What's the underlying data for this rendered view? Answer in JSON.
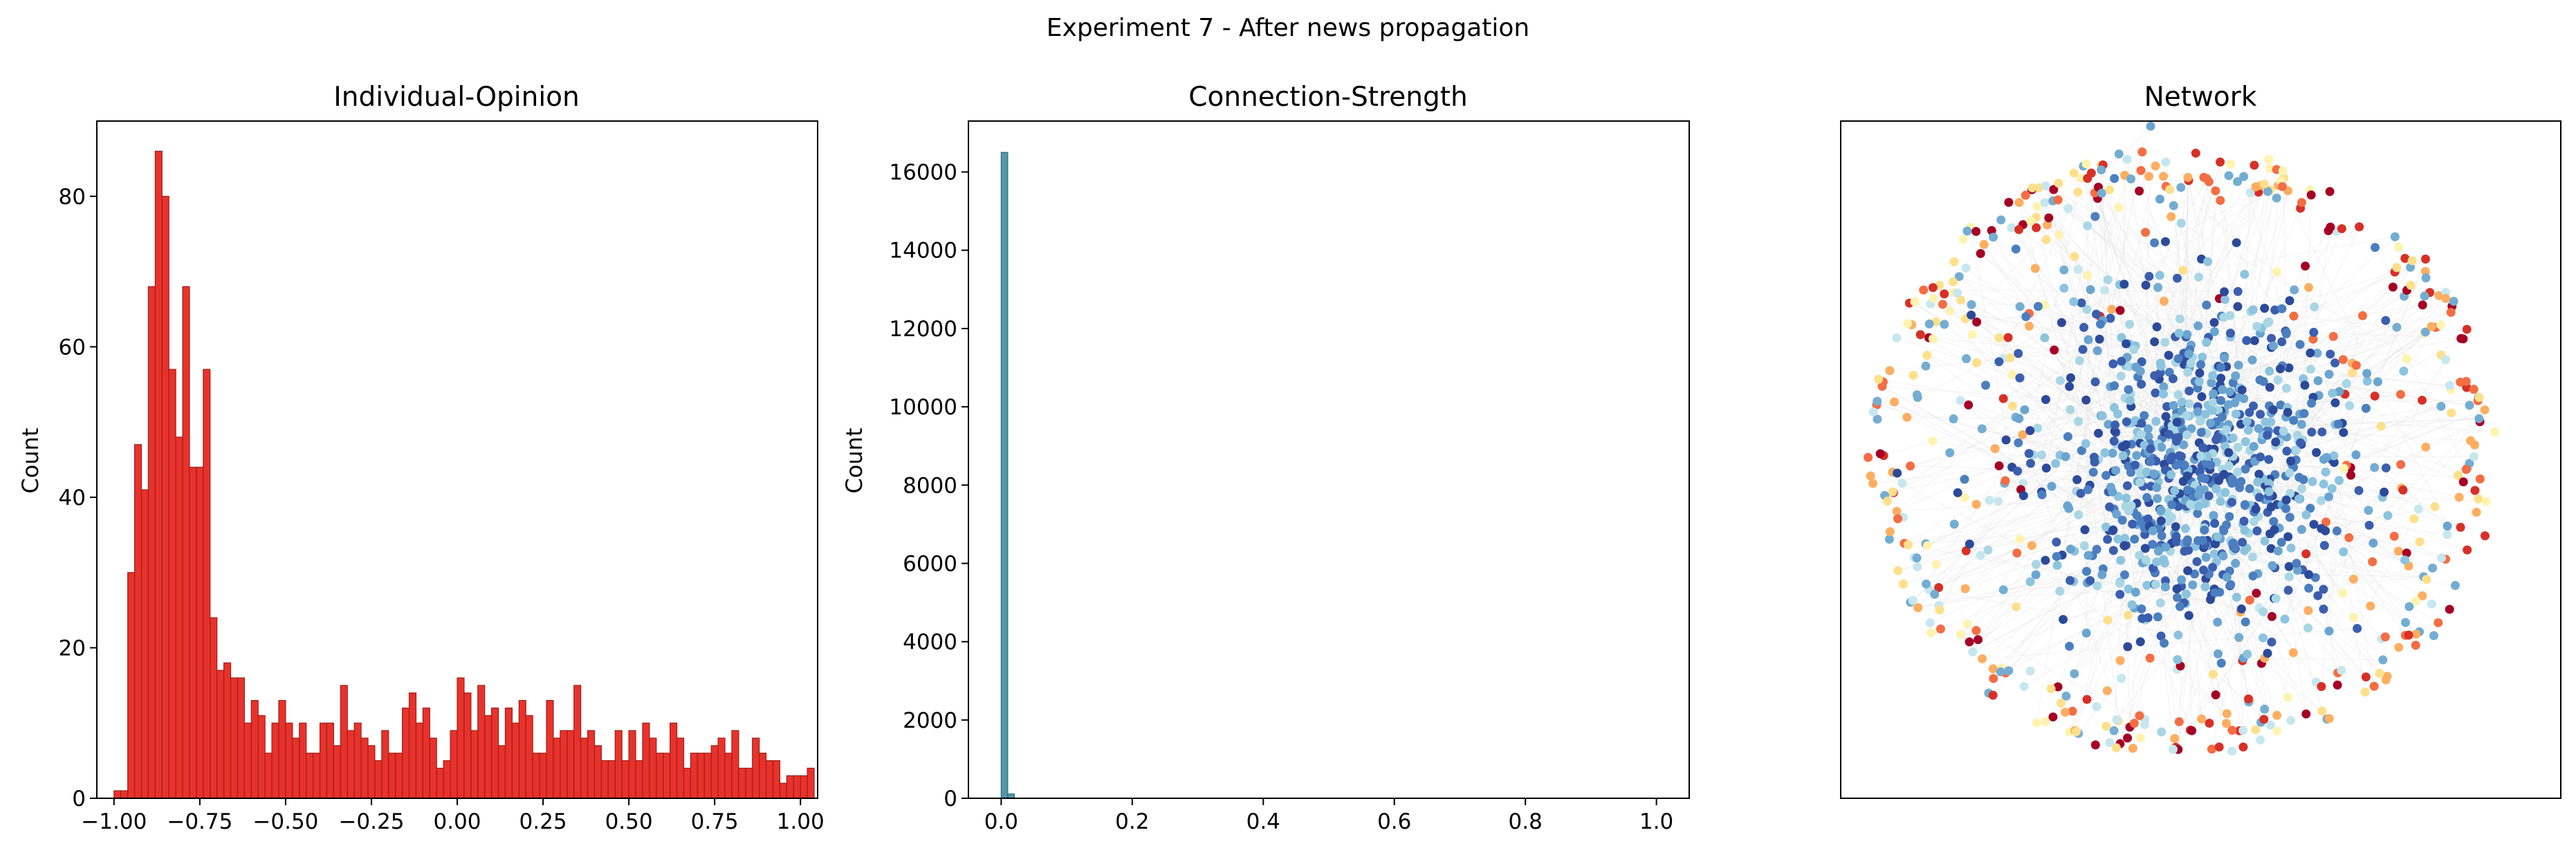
{
  "figure": {
    "suptitle": "Experiment 7 - After news propagation"
  },
  "chart_data": [
    {
      "type": "bar",
      "title": "Individual-Opinion",
      "xlabel": "",
      "ylabel": "Count",
      "bar_color": "#e8322b",
      "edge_color": "#9e1f1a",
      "xlim": [
        -1.05,
        1.05
      ],
      "ylim": [
        0,
        90
      ],
      "xticks": [
        -1.0,
        -0.75,
        -0.5,
        -0.25,
        0.0,
        0.25,
        0.5,
        0.75,
        1.0
      ],
      "xtick_labels": [
        "−1.00",
        "−0.75",
        "−0.50",
        "−0.25",
        "0.00",
        "0.25",
        "0.50",
        "0.75",
        "1.00"
      ],
      "yticks": [
        0,
        20,
        40,
        60,
        80
      ],
      "ytick_labels": [
        "0",
        "20",
        "40",
        "60",
        "80"
      ],
      "bin_start": -1.0,
      "bin_width": 0.02,
      "values": [
        1,
        1,
        30,
        47,
        41,
        68,
        86,
        80,
        57,
        48,
        68,
        44,
        44,
        57,
        24,
        17,
        18,
        16,
        16,
        10,
        13,
        11,
        6,
        10,
        13,
        10,
        8,
        10,
        6,
        6,
        10,
        10,
        7,
        15,
        9,
        10,
        8,
        7,
        5,
        9,
        6,
        6,
        12,
        14,
        10,
        12,
        8,
        4,
        5,
        9,
        16,
        14,
        9,
        15,
        11,
        12,
        7,
        12,
        10,
        13,
        11,
        6,
        6,
        13,
        8,
        9,
        9,
        15,
        8,
        9,
        7,
        5,
        5,
        9,
        5,
        9,
        5,
        10,
        8,
        6,
        6,
        10,
        8,
        4,
        6,
        6,
        6,
        7,
        8,
        6,
        9,
        4,
        4,
        8,
        6,
        5,
        5,
        2,
        3,
        3,
        3,
        4
      ]
    },
    {
      "type": "bar",
      "title": "Connection-Strength",
      "xlabel": "",
      "ylabel": "Count",
      "bar_color": "#5497a8",
      "edge_color": "#2f6b7a",
      "xlim": [
        -0.05,
        1.05
      ],
      "ylim": [
        0,
        17300
      ],
      "xticks": [
        0.0,
        0.2,
        0.4,
        0.6,
        0.8,
        1.0
      ],
      "xtick_labels": [
        "0.0",
        "0.2",
        "0.4",
        "0.6",
        "0.8",
        "1.0"
      ],
      "yticks": [
        0,
        2000,
        4000,
        6000,
        8000,
        10000,
        12000,
        14000,
        16000
      ],
      "ytick_labels": [
        "0",
        "2000",
        "4000",
        "6000",
        "8000",
        "10000",
        "12000",
        "14000",
        "16000"
      ],
      "bin_start": 0.0,
      "bin_width": 0.01,
      "values": [
        16500,
        110
      ]
    },
    {
      "type": "scatter",
      "title": "Network",
      "description": "Force-directed network graph; dense cluster of dark-blue/light-blue nodes in the centre, a ring of yellow, orange and red nodes around the periphery, light grey edges.",
      "center_colors": [
        "#2c4a9a",
        "#3b5fae",
        "#4c7fbf",
        "#6aa4d0",
        "#8cc3de",
        "#a9d6e5"
      ],
      "ring_colors": [
        "#fee08b",
        "#fdae61",
        "#f46d43",
        "#d73027",
        "#a50026",
        "#fff3b0",
        "#c6e7ef",
        "#74add1"
      ],
      "edge_color": "#e3e3e3"
    }
  ]
}
